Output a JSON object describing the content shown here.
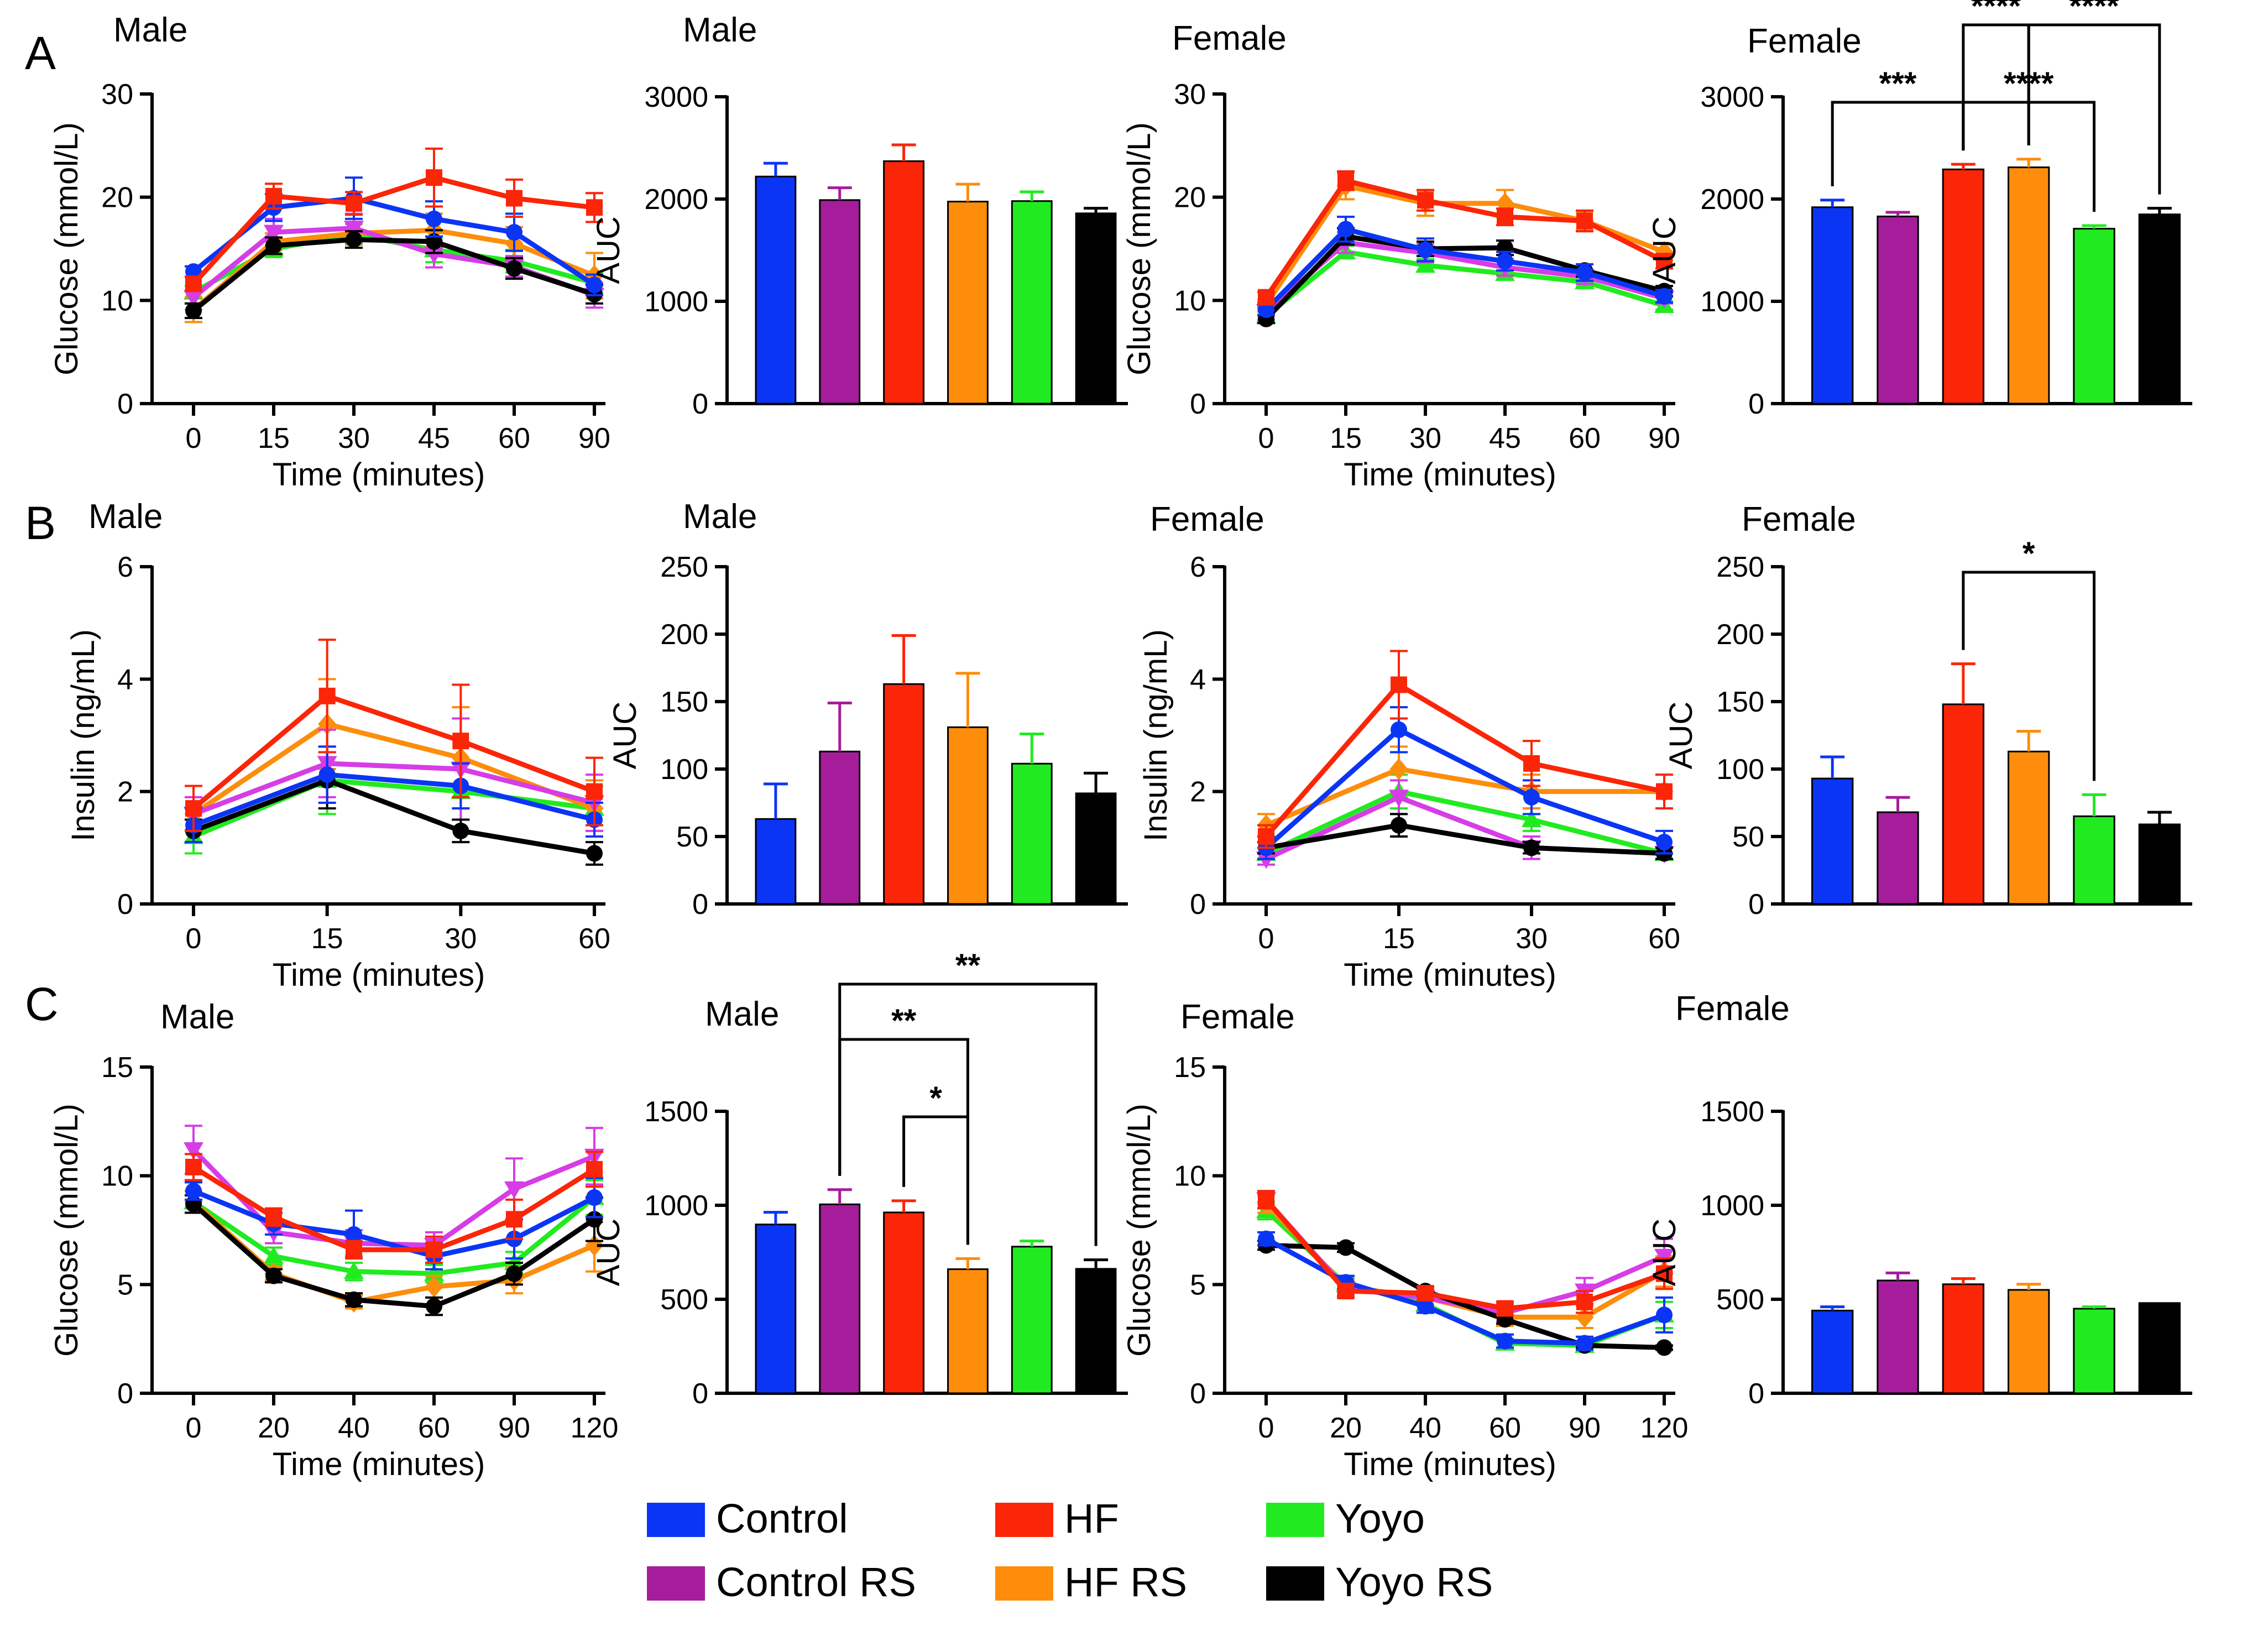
{
  "colors": {
    "Control": "#0b35f5",
    "Control RS": "#a51d9b",
    "HF": "#fb2507",
    "HF RS": "#fd8d0b",
    "Yoyo": "#21eb20",
    "Yoyo RS": "#000000",
    "Control RS (line)": "#d63de6"
  },
  "legend": {
    "items": [
      "Control",
      "HF",
      "Yoyo",
      "Control RS",
      "HF RS",
      "Yoyo RS"
    ]
  },
  "chart_data": [
    {
      "id": "A-male-line",
      "panel": "A",
      "type": "line",
      "title": "Male",
      "xlabel": "Time (minutes)",
      "ylabel": "Glucose (mmol/L)",
      "categories": [
        "0",
        "15",
        "30",
        "45",
        "60",
        "90"
      ],
      "ylim": [
        0,
        30
      ],
      "yticks": [
        0,
        10,
        20,
        30
      ],
      "series": [
        {
          "name": "Control",
          "values": [
            12.8,
            19.0,
            19.9,
            17.9,
            16.6,
            11.5
          ],
          "errors": [
            0.5,
            1.3,
            2.0,
            1.7,
            1.8,
            1.0
          ]
        },
        {
          "name": "Control RS",
          "values": [
            10.3,
            16.6,
            17.0,
            14.5,
            13.3,
            10.5
          ],
          "errors": [
            0.6,
            1.3,
            1.4,
            1.3,
            1.0,
            1.2
          ]
        },
        {
          "name": "HF",
          "values": [
            11.6,
            20.1,
            19.4,
            21.9,
            19.9,
            19.0
          ],
          "errors": [
            0.7,
            1.2,
            1.1,
            2.8,
            1.8,
            1.4
          ]
        },
        {
          "name": "HF RS",
          "values": [
            9.1,
            15.7,
            16.5,
            16.8,
            15.5,
            12.4
          ],
          "errors": [
            1.2,
            0.8,
            1.0,
            1.6,
            1.6,
            2.2
          ]
        },
        {
          "name": "Yoyo",
          "values": [
            10.8,
            15.0,
            16.4,
            14.9,
            13.8,
            11.7
          ],
          "errors": [
            0.6,
            0.8,
            1.0,
            1.2,
            1.1,
            1.0
          ]
        },
        {
          "name": "Yoyo RS",
          "values": [
            9.0,
            15.3,
            15.9,
            15.7,
            13.1,
            10.6
          ],
          "errors": [
            0.7,
            0.8,
            0.8,
            1.1,
            1.0,
            0.9
          ]
        }
      ]
    },
    {
      "id": "A-male-bar",
      "panel": "A",
      "type": "bar",
      "title": "Male",
      "xlabel": "",
      "ylabel": "AUC",
      "categories": [
        "Control",
        "Control RS",
        "HF",
        "HF RS",
        "Yoyo",
        "Yoyo RS"
      ],
      "ylim": [
        0,
        3000
      ],
      "yticks": [
        0,
        1000,
        2000,
        3000
      ],
      "values": [
        2220,
        1990,
        2370,
        1975,
        1980,
        1860
      ],
      "errors": [
        130,
        120,
        160,
        170,
        90,
        50
      ],
      "annotations": []
    },
    {
      "id": "A-female-line",
      "panel": "A",
      "type": "line",
      "title": "Female",
      "xlabel": "Time (minutes)",
      "ylabel": "Glucose (mmol/L)",
      "categories": [
        "0",
        "15",
        "30",
        "45",
        "60",
        "90"
      ],
      "ylim": [
        0,
        30
      ],
      "yticks": [
        0,
        10,
        20,
        30
      ],
      "series": [
        {
          "name": "Control",
          "values": [
            9.1,
            16.9,
            14.9,
            13.8,
            12.7,
            10.4
          ],
          "errors": [
            0.5,
            1.2,
            1.1,
            0.9,
            0.8,
            0.6
          ]
        },
        {
          "name": "Control RS",
          "values": [
            8.9,
            15.6,
            14.6,
            13.2,
            12.3,
            10.2
          ],
          "errors": [
            0.4,
            1.0,
            0.9,
            0.8,
            0.7,
            0.5
          ]
        },
        {
          "name": "HF",
          "values": [
            10.3,
            21.6,
            19.7,
            18.1,
            17.7,
            13.8
          ],
          "errors": [
            0.5,
            0.9,
            1.0,
            0.8,
            1.0,
            0.7
          ]
        },
        {
          "name": "HF RS",
          "values": [
            9.6,
            21.1,
            19.4,
            19.4,
            17.7,
            14.7
          ],
          "errors": [
            0.5,
            1.3,
            1.2,
            1.3,
            0.9,
            0.8
          ]
        },
        {
          "name": "Yoyo",
          "values": [
            8.5,
            14.7,
            13.4,
            12.6,
            11.8,
            9.5
          ],
          "errors": [
            0.4,
            0.6,
            0.6,
            0.6,
            0.5,
            0.4
          ]
        },
        {
          "name": "Yoyo RS",
          "values": [
            8.2,
            16.2,
            15.0,
            15.1,
            12.9,
            10.9
          ],
          "errors": [
            0.4,
            0.8,
            0.7,
            0.7,
            0.6,
            0.5
          ]
        }
      ]
    },
    {
      "id": "A-female-bar",
      "panel": "A",
      "type": "bar",
      "title": "Female",
      "xlabel": "",
      "ylabel": "AUC",
      "categories": [
        "Control",
        "Control RS",
        "HF",
        "HF RS",
        "Yoyo",
        "Yoyo RS"
      ],
      "ylim": [
        0,
        3000
      ],
      "yticks": [
        0,
        1000,
        2000,
        3000
      ],
      "values": [
        1920,
        1830,
        2290,
        2310,
        1710,
        1850
      ],
      "errors": [
        70,
        40,
        50,
        80,
        30,
        60
      ],
      "annotations": [
        {
          "from": 0,
          "to": 2,
          "label": "***",
          "level": 1
        },
        {
          "from": 2,
          "to": 4,
          "label": "****",
          "level": 1
        },
        {
          "from": 2,
          "to": 3,
          "label": "****",
          "level": 2
        },
        {
          "from": 3,
          "to": 5,
          "label": "****",
          "level": 2
        }
      ]
    },
    {
      "id": "B-male-line",
      "panel": "B",
      "type": "line",
      "title": "Male",
      "xlabel": "Time (minutes)",
      "ylabel": "Insulin (ng/mL)",
      "categories": [
        "0",
        "15",
        "30",
        "60"
      ],
      "ylim": [
        0,
        6
      ],
      "yticks": [
        0,
        2,
        4,
        6
      ],
      "series": [
        {
          "name": "Control",
          "values": [
            1.4,
            2.3,
            2.1,
            1.5
          ],
          "errors": [
            0.3,
            0.5,
            0.4,
            0.3
          ]
        },
        {
          "name": "Control RS",
          "values": [
            1.6,
            2.5,
            2.4,
            1.8
          ],
          "errors": [
            0.3,
            0.6,
            0.9,
            0.5
          ]
        },
        {
          "name": "HF",
          "values": [
            1.7,
            3.7,
            2.9,
            2.0
          ],
          "errors": [
            0.4,
            1.0,
            1.0,
            0.6
          ]
        },
        {
          "name": "HF RS",
          "values": [
            1.6,
            3.2,
            2.6,
            1.7
          ],
          "errors": [
            0.3,
            0.8,
            0.9,
            0.5
          ]
        },
        {
          "name": "Yoyo",
          "values": [
            1.2,
            2.2,
            2.0,
            1.7
          ],
          "errors": [
            0.3,
            0.6,
            0.5,
            0.4
          ]
        },
        {
          "name": "Yoyo RS",
          "values": [
            1.3,
            2.2,
            1.3,
            0.9
          ],
          "errors": [
            0.2,
            0.5,
            0.2,
            0.2
          ]
        }
      ]
    },
    {
      "id": "B-male-bar",
      "panel": "B",
      "type": "bar",
      "title": "Male",
      "xlabel": "",
      "ylabel": "AUC",
      "categories": [
        "Control",
        "Control RS",
        "HF",
        "HF RS",
        "Yoyo",
        "Yoyo RS"
      ],
      "ylim": [
        0,
        250
      ],
      "yticks": [
        0,
        50,
        100,
        150,
        200,
        250
      ],
      "values": [
        63,
        113,
        163,
        131,
        104,
        82
      ],
      "errors": [
        26,
        36,
        36,
        40,
        22,
        15
      ],
      "annotations": []
    },
    {
      "id": "B-female-line",
      "panel": "B",
      "type": "line",
      "title": "Female",
      "xlabel": "Time (minutes)",
      "ylabel": "Insulin (ng/mL)",
      "categories": [
        "0",
        "15",
        "30",
        "60"
      ],
      "ylim": [
        0,
        6
      ],
      "yticks": [
        0,
        2,
        4,
        6
      ],
      "series": [
        {
          "name": "Control",
          "values": [
            1.0,
            3.1,
            1.9,
            1.1
          ],
          "errors": [
            0.2,
            0.4,
            0.3,
            0.2
          ]
        },
        {
          "name": "Control RS",
          "values": [
            0.8,
            1.9,
            1.0,
            0.9
          ],
          "errors": [
            0.1,
            0.3,
            0.2,
            0.1
          ]
        },
        {
          "name": "HF",
          "values": [
            1.2,
            3.9,
            2.5,
            2.0
          ],
          "errors": [
            0.2,
            0.6,
            0.4,
            0.3
          ]
        },
        {
          "name": "HF RS",
          "values": [
            1.4,
            2.4,
            2.0,
            2.0
          ],
          "errors": [
            0.2,
            0.4,
            0.3,
            0.3
          ]
        },
        {
          "name": "Yoyo",
          "values": [
            0.9,
            2.0,
            1.5,
            0.9
          ],
          "errors": [
            0.1,
            0.3,
            0.2,
            0.1
          ]
        },
        {
          "name": "Yoyo RS",
          "values": [
            1.0,
            1.4,
            1.0,
            0.9
          ],
          "errors": [
            0.1,
            0.2,
            0.1,
            0.1
          ]
        }
      ]
    },
    {
      "id": "B-female-bar",
      "panel": "B",
      "type": "bar",
      "title": "Female",
      "xlabel": "",
      "ylabel": "AUC",
      "categories": [
        "Control",
        "Control RS",
        "HF",
        "HF RS",
        "Yoyo",
        "Yoyo RS"
      ],
      "ylim": [
        0,
        250
      ],
      "yticks": [
        0,
        50,
        100,
        150,
        200,
        250
      ],
      "values": [
        93,
        68,
        148,
        113,
        65,
        59
      ],
      "errors": [
        16,
        11,
        30,
        15,
        16,
        9
      ],
      "annotations": [
        {
          "from": 2,
          "to": 4,
          "label": "*",
          "level": 1
        }
      ]
    },
    {
      "id": "C-male-line",
      "panel": "C",
      "type": "line",
      "title": "Male",
      "xlabel": "Time (minutes)",
      "ylabel": "Glucose (mmol/L)",
      "categories": [
        "0",
        "20",
        "40",
        "60",
        "90",
        "120"
      ],
      "ylim": [
        0,
        15
      ],
      "yticks": [
        0,
        5,
        10,
        15
      ],
      "series": [
        {
          "name": "Control",
          "values": [
            9.3,
            7.8,
            7.3,
            6.3,
            7.1,
            9.0
          ],
          "errors": [
            0.4,
            0.5,
            1.1,
            0.6,
            0.9,
            0.9
          ]
        },
        {
          "name": "Control RS",
          "values": [
            11.2,
            7.4,
            6.9,
            6.8,
            9.4,
            10.9
          ],
          "errors": [
            1.1,
            0.5,
            0.6,
            0.6,
            1.4,
            1.3
          ]
        },
        {
          "name": "HF",
          "values": [
            10.4,
            8.1,
            6.6,
            6.6,
            8.0,
            10.3
          ],
          "errors": [
            0.6,
            0.4,
            0.4,
            0.6,
            0.9,
            0.8
          ]
        },
        {
          "name": "HF RS",
          "values": [
            8.8,
            5.5,
            4.2,
            4.9,
            5.2,
            6.8
          ],
          "errors": [
            0.5,
            0.3,
            0.3,
            0.5,
            0.6,
            1.2
          ]
        },
        {
          "name": "Yoyo",
          "values": [
            8.8,
            6.3,
            5.6,
            5.5,
            6.0,
            9.0
          ],
          "errors": [
            0.5,
            0.4,
            0.4,
            0.4,
            0.5,
            0.8
          ]
        },
        {
          "name": "Yoyo RS",
          "values": [
            8.7,
            5.4,
            4.3,
            4.0,
            5.5,
            8.0
          ],
          "errors": [
            0.4,
            0.3,
            0.3,
            0.4,
            0.5,
            1.0
          ]
        }
      ]
    },
    {
      "id": "C-male-bar",
      "panel": "C",
      "type": "bar",
      "title": "Male",
      "xlabel": "",
      "ylabel": "AUC",
      "categories": [
        "Control",
        "Control RS",
        "HF",
        "HF RS",
        "Yoyo",
        "Yoyo RS"
      ],
      "ylim": [
        0,
        1500
      ],
      "yticks": [
        0,
        500,
        1000,
        1500
      ],
      "values": [
        898,
        1005,
        962,
        660,
        780,
        662
      ],
      "errors": [
        65,
        78,
        62,
        56,
        30,
        48
      ],
      "annotations": [
        {
          "from": 2,
          "to": 3,
          "label": "*",
          "level": 1
        },
        {
          "from": 1,
          "to": 3,
          "label": "**",
          "level": 2
        },
        {
          "from": 1,
          "to": 5,
          "label": "**",
          "level": 3
        }
      ]
    },
    {
      "id": "C-female-line",
      "panel": "C",
      "type": "line",
      "title": "Female",
      "xlabel": "Time (minutes)",
      "ylabel": "Glucose (mmol/L)",
      "categories": [
        "0",
        "20",
        "40",
        "60",
        "90",
        "120"
      ],
      "ylim": [
        0,
        15
      ],
      "yticks": [
        0,
        5,
        10,
        15
      ],
      "series": [
        {
          "name": "Control",
          "values": [
            7.1,
            5.1,
            4.0,
            2.4,
            2.3,
            3.6
          ],
          "errors": [
            0.3,
            0.3,
            0.3,
            0.3,
            0.3,
            0.8
          ]
        },
        {
          "name": "Control RS",
          "values": [
            8.9,
            4.8,
            4.4,
            3.7,
            4.7,
            6.3
          ],
          "errors": [
            0.4,
            0.3,
            0.4,
            0.4,
            0.6,
            0.8
          ]
        },
        {
          "name": "HF",
          "values": [
            8.9,
            4.7,
            4.6,
            3.9,
            4.2,
            5.5
          ],
          "errors": [
            0.4,
            0.3,
            0.3,
            0.3,
            0.5,
            0.7
          ]
        },
        {
          "name": "HF RS",
          "values": [
            8.7,
            4.9,
            4.4,
            3.5,
            3.5,
            5.6
          ],
          "errors": [
            0.4,
            0.3,
            0.3,
            0.4,
            0.5,
            0.7
          ]
        },
        {
          "name": "Yoyo",
          "values": [
            8.4,
            5.0,
            4.1,
            2.3,
            2.2,
            3.6
          ],
          "errors": [
            0.4,
            0.3,
            0.3,
            0.2,
            0.2,
            0.6
          ]
        },
        {
          "name": "Yoyo RS",
          "values": [
            6.8,
            6.7,
            4.7,
            3.4,
            2.2,
            2.1
          ],
          "errors": [
            0.2,
            0.2,
            0.2,
            0.2,
            0.1,
            0.1
          ]
        }
      ]
    },
    {
      "id": "C-female-bar",
      "panel": "C",
      "type": "bar",
      "title": "Female",
      "xlabel": "",
      "ylabel": "AUC",
      "categories": [
        "Control",
        "Control RS",
        "HF",
        "HF RS",
        "Yoyo",
        "Yoyo RS"
      ],
      "ylim": [
        0,
        1500
      ],
      "yticks": [
        0,
        500,
        1000,
        1500
      ],
      "values": [
        440,
        600,
        580,
        550,
        450,
        480
      ],
      "errors": [
        20,
        40,
        30,
        30,
        10,
        0
      ],
      "annotations": []
    }
  ]
}
